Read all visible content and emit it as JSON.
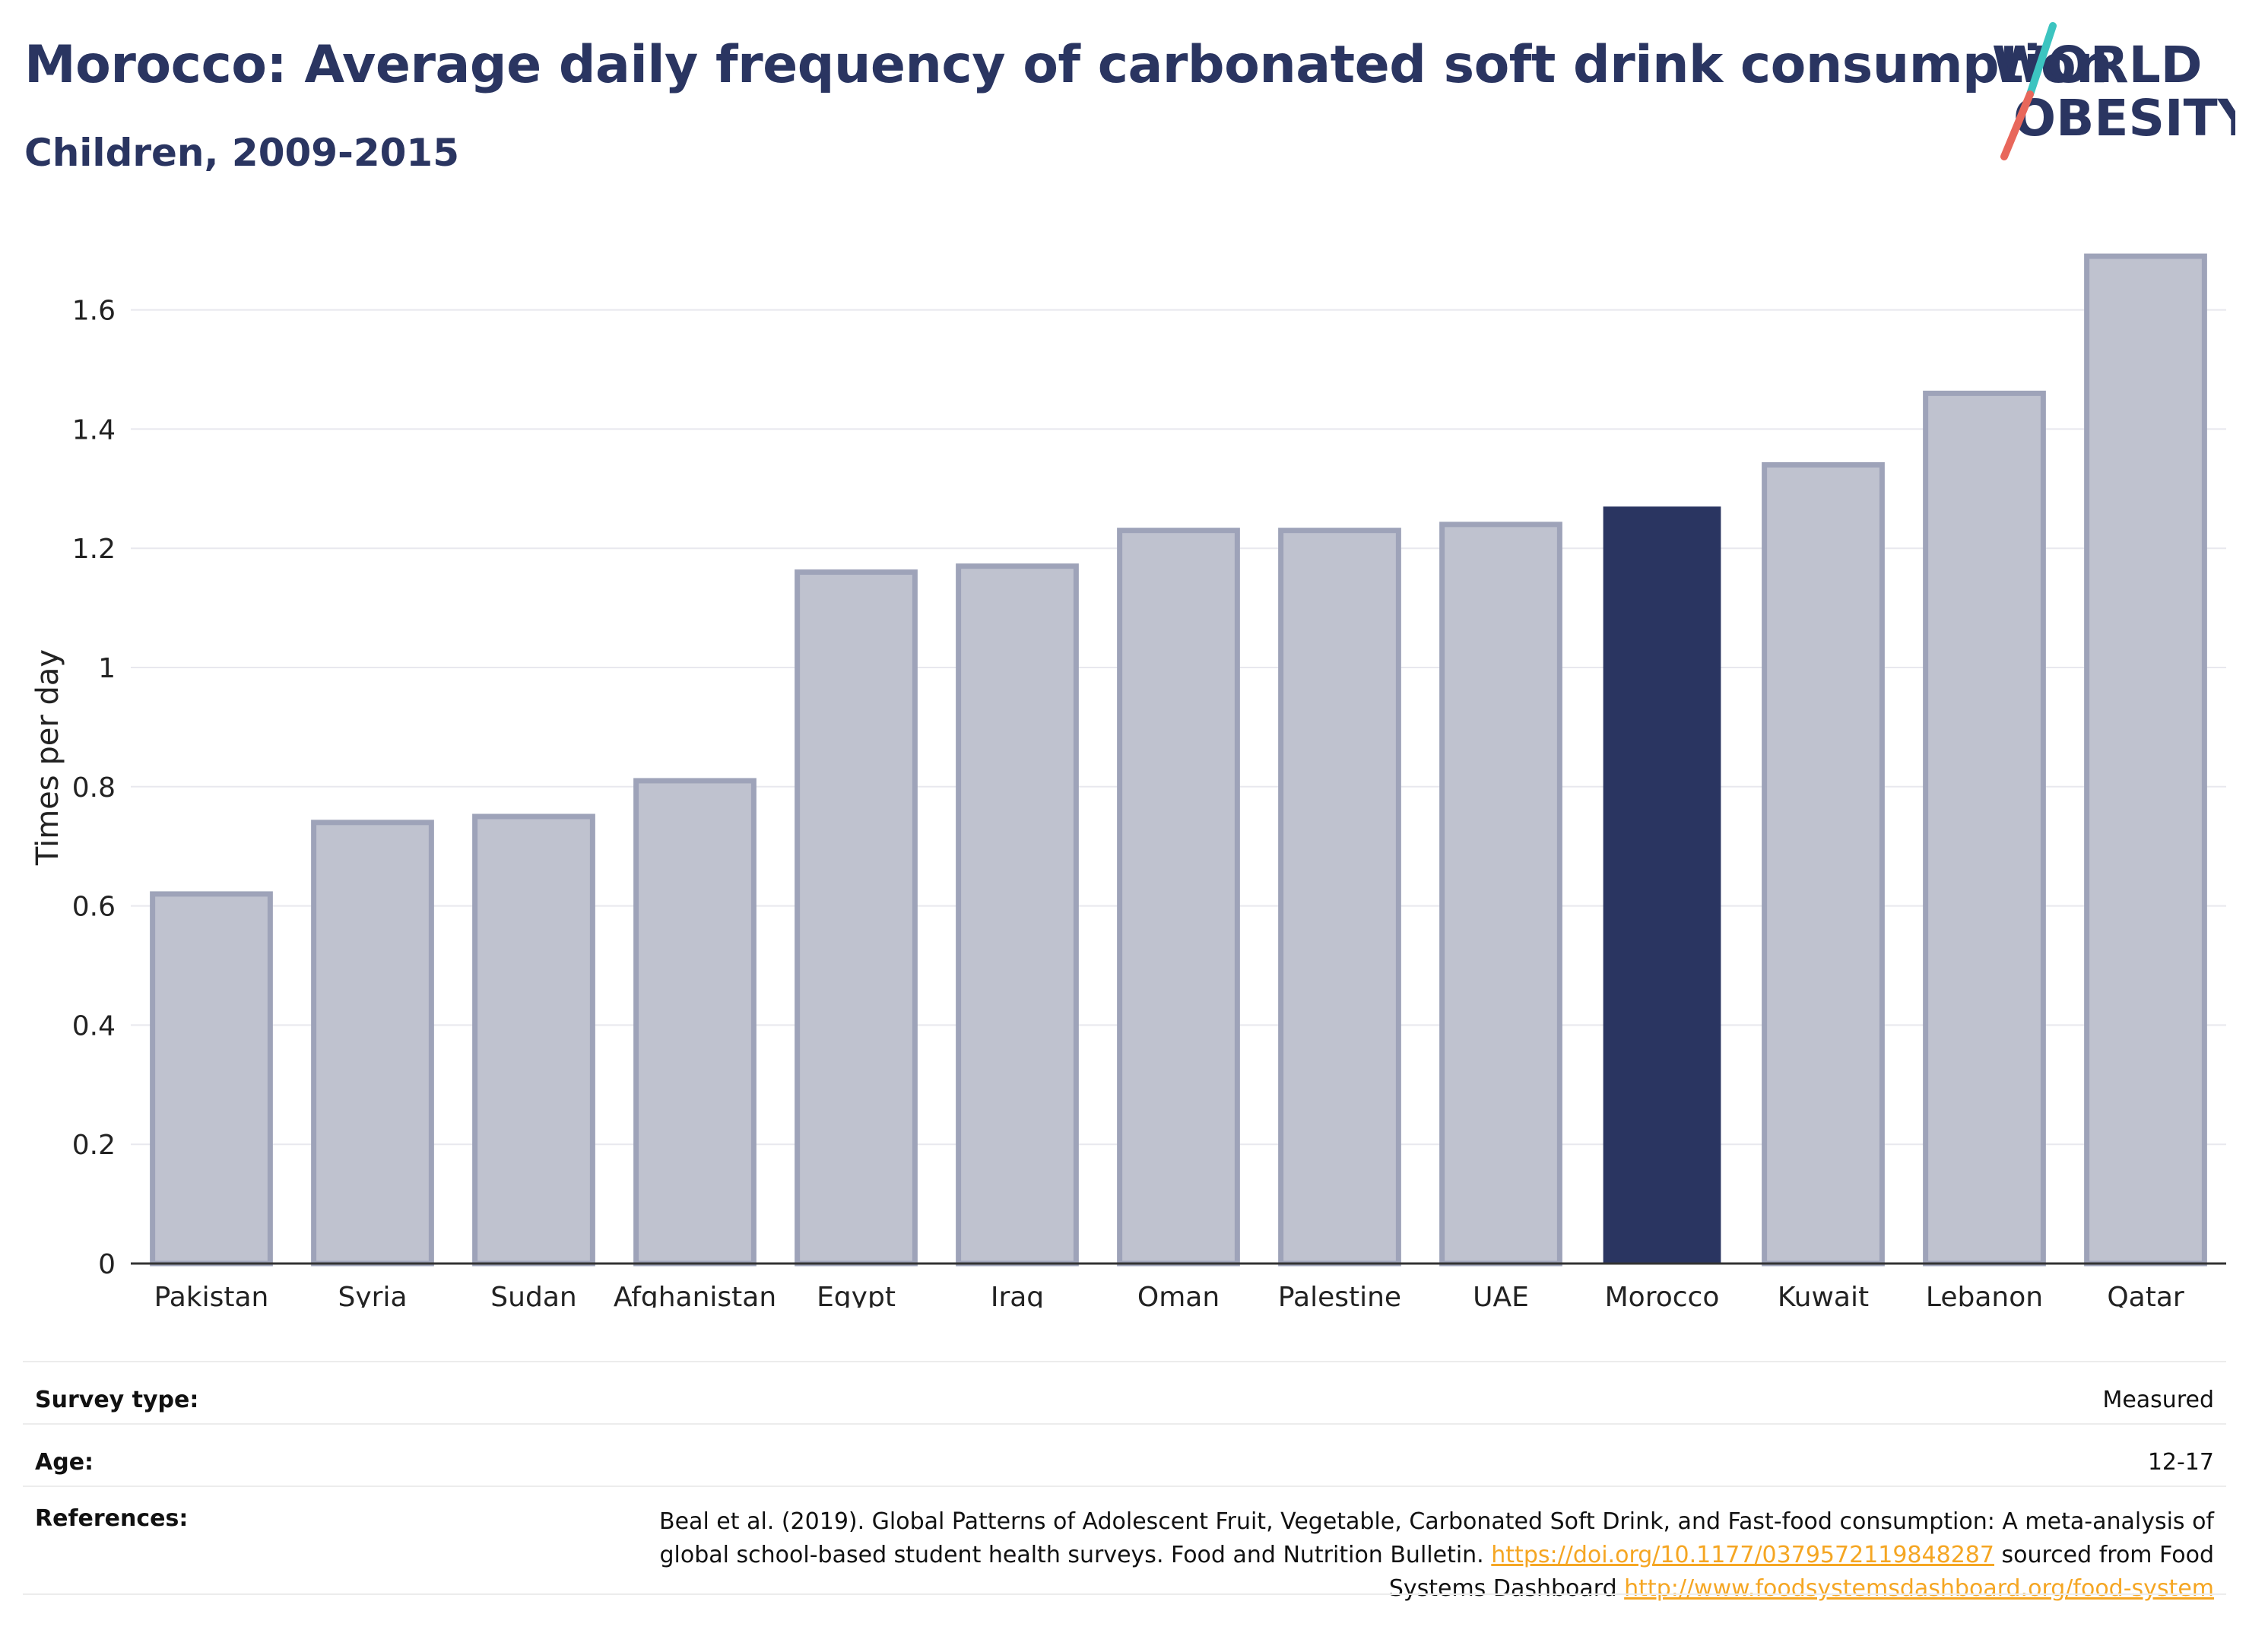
{
  "header": {
    "title": "Morocco: Average daily frequency of carbonated soft drink consumption",
    "subtitle": "Children, 2009-2015"
  },
  "logo": {
    "line1": "WORLD",
    "line2": "OBESITY",
    "text_color": "#2a3561",
    "slash_top_color": "#3cc4c0",
    "slash_bottom_color": "#e8675b"
  },
  "chart_data": {
    "type": "bar",
    "categories": [
      "Pakistan",
      "Syria",
      "Sudan",
      "Afghanistan",
      "Egypt",
      "Iraq",
      "Oman",
      "Palestine",
      "UAE",
      "Morocco",
      "Kuwait",
      "Lebanon",
      "Qatar"
    ],
    "values": [
      0.62,
      0.74,
      0.75,
      0.81,
      1.16,
      1.17,
      1.23,
      1.23,
      1.24,
      1.27,
      1.34,
      1.46,
      1.69
    ],
    "highlight": "Morocco",
    "ylabel": "Times per day",
    "ylim": [
      0,
      1.75
    ],
    "yticks": [
      0,
      0.2,
      0.4,
      0.6,
      0.8,
      1,
      1.2,
      1.4,
      1.6
    ],
    "ytick_labels": [
      "0",
      "0.2",
      "0.4",
      "0.6",
      "0.8",
      "1",
      "1.2",
      "1.4",
      "1.6"
    ],
    "grid": true,
    "colors": {
      "bar_fill": "#bfc2cf",
      "bar_outline": "#9ea3b9",
      "highlight_fill": "#2a3561",
      "grid": "#e8e8ee",
      "axis": "#333333"
    }
  },
  "info": {
    "survey_type_label": "Survey type:",
    "survey_type_value": "Measured",
    "age_label": "Age:",
    "age_value": "12-17",
    "references_label": "References:",
    "references_text_1": "Beal et al. (2019). Global Patterns of Adolescent Fruit, Vegetable, Carbonated Soft Drink, and Fast-food consumption: A meta-analysis of global school-based student health surveys. Food and Nutrition Bulletin.",
    "references_link_1": "https://doi.org/10.1177/0379572119848287",
    "references_text_2": "sourced from Food Systems Dashboard",
    "references_link_2": "http://www.foodsystemsdashboard.org/food-system",
    "link_color": "#f5a623"
  }
}
